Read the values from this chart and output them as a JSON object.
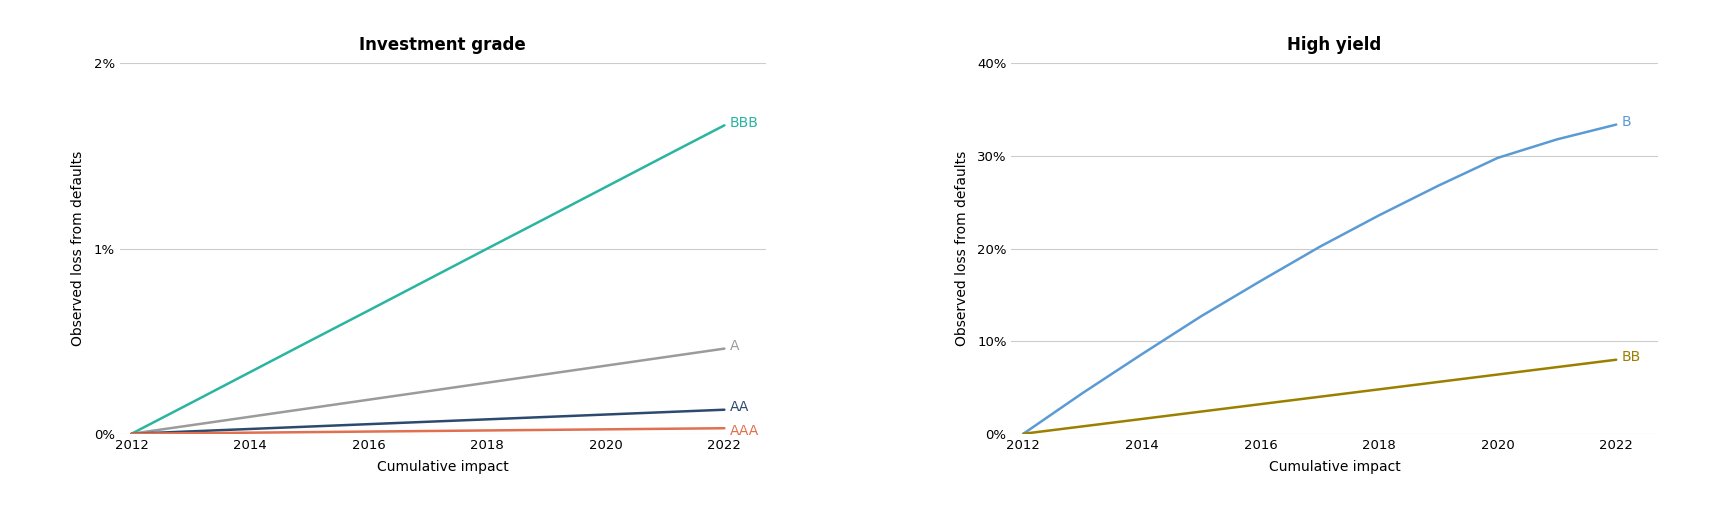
{
  "left_title": "Investment grade",
  "right_title": "High yield",
  "xlabel": "Cumulative impact",
  "ylabel": "Observed loss from defaults",
  "years": [
    2012,
    2013,
    2014,
    2015,
    2016,
    2017,
    2018,
    2019,
    2020,
    2021,
    2022
  ],
  "ig_lines": {
    "BBB": {
      "values": [
        0.0,
        0.00166,
        0.00333,
        0.005,
        0.00666,
        0.00833,
        0.01,
        0.01166,
        0.01333,
        0.015,
        0.01666
      ],
      "color": "#2ab5a0",
      "label": "BBB"
    },
    "A": {
      "values": [
        0.0,
        0.00046,
        0.00092,
        0.00138,
        0.00184,
        0.0023,
        0.00276,
        0.00322,
        0.00368,
        0.00414,
        0.0046
      ],
      "color": "#9b9b9b",
      "label": "A"
    },
    "AA": {
      "values": [
        0.0,
        0.00013,
        0.00026,
        0.00039,
        0.00052,
        0.00065,
        0.00078,
        0.00091,
        0.00104,
        0.00117,
        0.0013
      ],
      "color": "#2d4a6e",
      "label": "AA"
    },
    "AAA": {
      "values": [
        0.0,
        3e-05,
        6e-05,
        9e-05,
        0.00012,
        0.00015,
        0.00018,
        0.00021,
        0.00024,
        0.00027,
        0.0003
      ],
      "color": "#e07050",
      "label": "AAA"
    }
  },
  "hy_lines": {
    "B": {
      "color": "#5b9bd5",
      "label": "B",
      "values": [
        0.0,
        0.044,
        0.086,
        0.127,
        0.165,
        0.202,
        0.236,
        0.268,
        0.298,
        0.318,
        0.334
      ]
    },
    "BB": {
      "color": "#9b8000",
      "label": "BB",
      "values": [
        0.0,
        0.008,
        0.016,
        0.024,
        0.032,
        0.04,
        0.048,
        0.056,
        0.064,
        0.072,
        0.08
      ]
    }
  },
  "ig_ylim": [
    0,
    0.02
  ],
  "hy_ylim": [
    0,
    0.4
  ],
  "ig_yticks": [
    0,
    0.01,
    0.02
  ],
  "hy_yticks": [
    0,
    0.1,
    0.2,
    0.3,
    0.4
  ],
  "ig_ytick_labels": [
    "0%",
    "1%",
    "2%"
  ],
  "hy_ytick_labels": [
    "0%",
    "10%",
    "20%",
    "30%",
    "40%"
  ],
  "xlim": [
    2011.8,
    2022.7
  ],
  "xticks": [
    2012,
    2014,
    2016,
    2018,
    2020,
    2022
  ],
  "background_color": "#ffffff",
  "grid_color": "#cccccc",
  "title_fontsize": 12,
  "label_fontsize": 10,
  "tick_fontsize": 9.5,
  "line_width": 1.8,
  "annotation_fontsize": 10
}
